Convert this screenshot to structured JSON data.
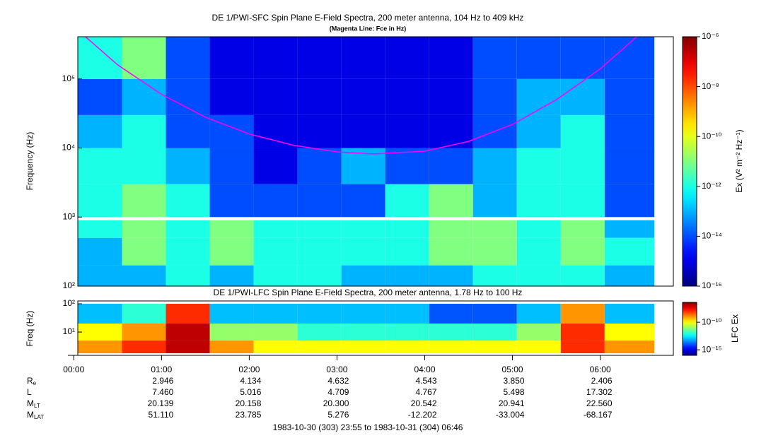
{
  "chart_data": [
    {
      "type": "heatmap",
      "title": "DE 1/PWI-SFC  Spin Plane E-Field Spectra, 200 meter antenna, 104 Hz to 409 kHz",
      "subtitle": "(Magenta Line: Fce in Hz)",
      "y_label": "Frequency (Hz)",
      "log_y": true,
      "ylim": [
        100,
        409000
      ],
      "yticks": [
        {
          "value": 100,
          "label": "10²"
        },
        {
          "value": 1000,
          "label": "10³"
        },
        {
          "value": 10000,
          "label": "10⁴"
        },
        {
          "value": 100000,
          "label": "10⁵"
        }
      ],
      "x_edges": [
        3,
        33,
        63,
        93,
        123,
        153,
        183,
        213,
        243,
        273,
        303,
        333,
        363,
        397
      ],
      "y_edges": [
        100,
        200,
        500,
        900,
        1000,
        3000,
        10000,
        30000,
        100000,
        409000
      ],
      "z": [
        [
          1e-13,
          1e-13,
          1e-12,
          1e-13,
          1e-12,
          1e-12,
          1e-13,
          1e-13,
          1e-13,
          1e-12,
          1e-12,
          1e-12,
          1e-13
        ],
        [
          1e-13,
          1e-11,
          1e-12,
          1e-11,
          1e-12,
          1e-12,
          1e-12,
          1e-12,
          1e-11,
          1e-11,
          1e-12,
          1e-11,
          1e-12
        ],
        [
          1e-12,
          1e-11,
          1e-12,
          1e-11,
          1e-12,
          1e-12,
          1e-12,
          1e-12,
          1e-11,
          1e-11,
          1e-12,
          1e-11,
          1e-13
        ],
        [
          null,
          null,
          null,
          null,
          null,
          null,
          null,
          null,
          null,
          null,
          null,
          null,
          null
        ],
        [
          1e-12,
          1e-11,
          1e-12,
          1e-14,
          1e-14,
          1e-14,
          1e-14,
          1e-12,
          1e-11,
          1e-13,
          1e-12,
          1e-12,
          1e-14
        ],
        [
          1e-12,
          1e-12,
          1e-13,
          1e-14,
          1e-15,
          1e-14,
          1e-13,
          1e-14,
          1e-14,
          1e-13,
          1e-12,
          1e-12,
          1e-14
        ],
        [
          1e-13,
          1e-12,
          1e-14,
          1e-14,
          1e-15,
          1e-15,
          1e-15,
          1e-15,
          1e-15,
          1e-14,
          1e-13,
          1e-12,
          1e-14
        ],
        [
          1e-14,
          1e-13,
          1e-14,
          1e-15,
          1e-15,
          1e-15,
          1e-15,
          1e-15,
          1e-15,
          1e-14,
          1e-13,
          1e-13,
          1e-14
        ],
        [
          1e-12,
          1e-11,
          1e-14,
          1e-15,
          1e-15,
          1e-15,
          1e-15,
          1e-15,
          1e-15,
          1e-14,
          1e-14,
          1e-14,
          1e-14
        ]
      ],
      "fce": {
        "color": "#ff00ff",
        "x": [
          8,
          30,
          60,
          90,
          120,
          150,
          180,
          205,
          240,
          270,
          300,
          330,
          360,
          385
        ],
        "values": [
          409000,
          160000,
          60000,
          28000,
          16000,
          11000,
          8800,
          8200,
          9000,
          12500,
          22000,
          50000,
          140000,
          409000
        ]
      },
      "colorbar": {
        "label": "Ex (V² m⁻² Hz⁻¹)",
        "log": true,
        "zlim": [
          1e-16,
          1e-06
        ],
        "zticks": [
          {
            "value": 1e-16,
            "label": "10⁻¹⁶"
          },
          {
            "value": 1e-14,
            "label": "10⁻¹⁴"
          },
          {
            "value": 1e-12,
            "label": "10⁻¹²"
          },
          {
            "value": 1e-10,
            "label": "10⁻¹⁰"
          },
          {
            "value": 1e-08,
            "label": "10⁻⁸"
          },
          {
            "value": 1e-06,
            "label": "10⁻⁶"
          }
        ]
      }
    },
    {
      "type": "heatmap",
      "title": "DE 1/PWI-LFC  Spin Plane E-Field Spectra, 200 meter antenna, 1.78 Hz to 100 Hz",
      "y_label": "Freq (Hz)",
      "log_y": true,
      "ylim": [
        1.5,
        126
      ],
      "yticks": [
        {
          "value": 10,
          "label": "10¹"
        },
        {
          "value": 100,
          "label": "10²"
        }
      ],
      "xlim": [
        -4,
        410
      ],
      "xticks": [
        {
          "value": 0,
          "label": "00:00"
        },
        {
          "value": 60,
          "label": "01:00"
        },
        {
          "value": 120,
          "label": "02:00"
        },
        {
          "value": 180,
          "label": "03:00"
        },
        {
          "value": 240,
          "label": "04:00"
        },
        {
          "value": 300,
          "label": "05:00"
        },
        {
          "value": 360,
          "label": "06:00"
        }
      ],
      "x_edges": [
        3,
        33,
        63,
        93,
        123,
        153,
        183,
        213,
        243,
        273,
        303,
        333,
        363,
        397
      ],
      "y_edges": [
        1.78,
        5,
        20,
        100
      ],
      "z": [
        [
          1e-09,
          1e-08,
          1e-07,
          1e-09,
          1e-10,
          1e-10,
          1e-10,
          1e-10,
          1e-10,
          1e-10,
          1e-10,
          1e-08,
          1e-09
        ],
        [
          1e-10,
          1e-09,
          1e-07,
          1e-11,
          1e-11,
          1e-12,
          1e-12,
          1e-12,
          1e-12,
          1e-12,
          1e-11,
          1e-08,
          1e-10
        ],
        [
          1e-13,
          1e-12,
          1e-08,
          1e-13,
          1e-13,
          1e-13,
          1e-13,
          1e-13,
          1e-14,
          1e-14,
          1e-13,
          1e-09,
          1e-13
        ]
      ],
      "colorbar": {
        "label": "LFC Ex",
        "log": true,
        "zlim": [
          1e-16,
          4e-07
        ],
        "zticks": [
          {
            "value": 1e-15,
            "label": "10⁻¹⁵"
          },
          {
            "value": 1e-10,
            "label": "10⁻¹⁰"
          }
        ]
      }
    }
  ],
  "ephemeris": [
    {
      "label": "R",
      "sub": "e",
      "values": [
        "2.946",
        "4.134",
        "4.632",
        "4.543",
        "3.850",
        "2.406"
      ]
    },
    {
      "label": "L",
      "values": [
        "7.460",
        "5.016",
        "4.709",
        "4.767",
        "5.498",
        "17.302"
      ]
    },
    {
      "label": "M",
      "sub": "LT",
      "values": [
        "20.139",
        "20.158",
        "20.300",
        "20.542",
        "20.941",
        "22.560"
      ]
    },
    {
      "label": "M",
      "sub": "LAT",
      "values": [
        "51.110",
        "23.785",
        "5.276",
        "-12.202",
        "-33.004",
        "-68.167"
      ]
    }
  ],
  "time_range": "1983-10-30 (303) 23:55 to 1983-10-31 (304) 06:46"
}
